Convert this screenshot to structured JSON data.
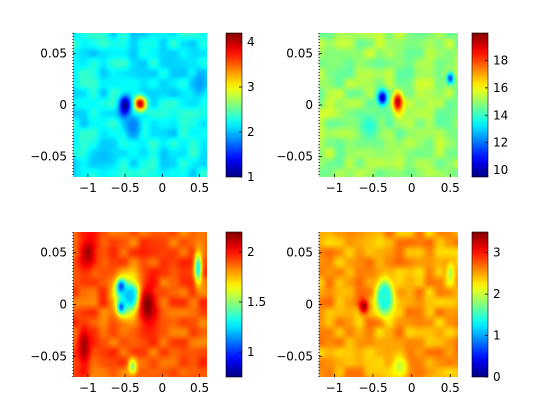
{
  "chart_data": [
    {
      "type": "heatmap",
      "panel": "top-left",
      "xlim": [
        -1.2,
        0.6
      ],
      "ylim": [
        -0.07,
        0.07
      ],
      "x_ticks": [
        -1,
        -0.5,
        0,
        0.5
      ],
      "x_tick_labels": [
        "−1",
        "−0.5",
        "0",
        "0.5"
      ],
      "y_ticks": [
        0.05,
        0,
        -0.05
      ],
      "y_tick_labels": [
        "0.05",
        "0",
        "−0.05"
      ],
      "colorbar": {
        "range": [
          1,
          4.2
        ],
        "ticks": [
          1,
          2,
          3,
          4
        ],
        "tick_labels": [
          "1",
          "2",
          "3",
          "4"
        ],
        "colormap": "jet"
      },
      "background_level": 2.2,
      "features": [
        {
          "x": -0.3,
          "y": 0.001,
          "value": 4.1,
          "sx": 0.08,
          "sy": 0.007
        },
        {
          "x": -0.5,
          "y": -0.001,
          "value": 1.0,
          "sx": 0.075,
          "sy": 0.01
        },
        {
          "x": -0.4,
          "y": -0.02,
          "value": 1.8,
          "sx": 0.12,
          "sy": 0.012
        },
        {
          "x": 0.5,
          "y": 0.02,
          "value": 1.9,
          "sx": 0.1,
          "sy": 0.015
        },
        {
          "x": -0.8,
          "y": -0.05,
          "value": 2.0,
          "sx": 0.2,
          "sy": 0.01
        }
      ],
      "grid": false
    },
    {
      "type": "heatmap",
      "panel": "top-right",
      "xlim": [
        -1.2,
        0.6
      ],
      "ylim": [
        -0.07,
        0.07
      ],
      "x_ticks": [
        -1,
        -0.5,
        0,
        0.5
      ],
      "x_tick_labels": [
        "−1",
        "−0.5",
        "0",
        "0.5"
      ],
      "y_ticks": [
        0.05,
        0,
        -0.05
      ],
      "y_tick_labels": [
        "0.05",
        "0",
        "−0.05"
      ],
      "colorbar": {
        "range": [
          9.5,
          20
        ],
        "ticks": [
          10,
          12,
          14,
          16,
          18
        ],
        "tick_labels": [
          "10",
          "12",
          "14",
          "16",
          "18"
        ],
        "colormap": "jet"
      },
      "background_level": 15.0,
      "features": [
        {
          "x": -0.38,
          "y": 0.007,
          "value": 10.0,
          "sx": 0.06,
          "sy": 0.007
        },
        {
          "x": -0.18,
          "y": 0.003,
          "value": 19.5,
          "sx": 0.06,
          "sy": 0.009
        },
        {
          "x": 0.5,
          "y": 0.026,
          "value": 11.5,
          "sx": 0.05,
          "sy": 0.006
        },
        {
          "x": -0.55,
          "y": -0.02,
          "value": 13.8,
          "sx": 0.15,
          "sy": 0.012
        }
      ],
      "grid": false
    },
    {
      "type": "heatmap",
      "panel": "bottom-left",
      "xlim": [
        -1.2,
        0.6
      ],
      "ylim": [
        -0.07,
        0.07
      ],
      "x_ticks": [
        -1,
        -0.5,
        0,
        0.5
      ],
      "x_tick_labels": [
        "−1",
        "−0.5",
        "0",
        "0.5"
      ],
      "y_ticks": [
        0.05,
        0,
        -0.05
      ],
      "y_tick_labels": [
        "0.05",
        "0",
        "−0.05"
      ],
      "colorbar": {
        "range": [
          0.75,
          2.2
        ],
        "ticks": [
          1,
          1.5,
          2
        ],
        "tick_labels": [
          "1",
          "1.5",
          "2"
        ],
        "colormap": "jet"
      },
      "background_level": 1.9,
      "features": [
        {
          "x": -0.55,
          "y": 0.017,
          "value": 0.8,
          "sx": 0.06,
          "sy": 0.007
        },
        {
          "x": -0.4,
          "y": 0.008,
          "value": 0.8,
          "sx": 0.06,
          "sy": 0.007
        },
        {
          "x": -0.55,
          "y": -0.002,
          "value": 0.9,
          "sx": 0.05,
          "sy": 0.006
        },
        {
          "x": -0.45,
          "y": 0.008,
          "value": 1.2,
          "sx": 0.18,
          "sy": 0.018
        },
        {
          "x": 0.48,
          "y": 0.035,
          "value": 1.3,
          "sx": 0.05,
          "sy": 0.015
        },
        {
          "x": -0.2,
          "y": 0.0,
          "value": 2.2,
          "sx": 0.12,
          "sy": 0.02
        },
        {
          "x": -1.0,
          "y": 0.05,
          "value": 2.15,
          "sx": 0.12,
          "sy": 0.015
        },
        {
          "x": -1.05,
          "y": -0.04,
          "value": 2.15,
          "sx": 0.08,
          "sy": 0.02
        },
        {
          "x": -0.4,
          "y": -0.06,
          "value": 1.5,
          "sx": 0.06,
          "sy": 0.008
        }
      ],
      "grid": false
    },
    {
      "type": "heatmap",
      "panel": "bottom-right",
      "xlim": [
        -1.2,
        0.6
      ],
      "ylim": [
        -0.07,
        0.07
      ],
      "x_ticks": [
        -1,
        -0.5,
        0,
        0.5
      ],
      "x_tick_labels": [
        "−1",
        "−0.5",
        "0",
        "0.5"
      ],
      "y_ticks": [
        0.05,
        0,
        -0.05
      ],
      "y_tick_labels": [
        "0.05",
        "0",
        "−0.05"
      ],
      "colorbar": {
        "range": [
          0,
          3.5
        ],
        "ticks": [
          0,
          1,
          2,
          3
        ],
        "tick_labels": [
          "0",
          "1",
          "2",
          "3"
        ],
        "colormap": "jet"
      },
      "background_level": 2.5,
      "features": [
        {
          "x": -0.35,
          "y": 0.007,
          "value": 0.0,
          "sx": 0.07,
          "sy": 0.011
        },
        {
          "x": -0.35,
          "y": 0.007,
          "value": 1.5,
          "sx": 0.11,
          "sy": 0.016
        },
        {
          "x": -0.62,
          "y": -0.002,
          "value": 3.4,
          "sx": 0.06,
          "sy": 0.007
        },
        {
          "x": 0.5,
          "y": 0.03,
          "value": 1.9,
          "sx": 0.05,
          "sy": 0.01
        },
        {
          "x": -0.15,
          "y": -0.06,
          "value": 2.0,
          "sx": 0.1,
          "sy": 0.01
        }
      ],
      "grid": false
    }
  ]
}
